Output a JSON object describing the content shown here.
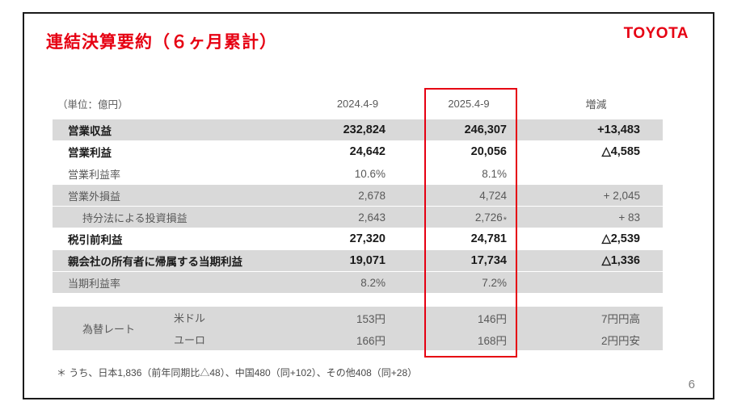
{
  "slide": {
    "title": "連結決算要約（６ヶ月累計）",
    "logo_text": "TOYOTA",
    "page_number": "6",
    "footnote": "＊ うち、日本1,836（前年同期比△48）、中国480（同+102）、その他408（同+28）"
  },
  "colors": {
    "accent_red": "#e60012",
    "row_gray": "#d9d9d9",
    "text_dark": "#1a1a1a",
    "text_gray": "#595959"
  },
  "table": {
    "unit_label": "（単位：億円）",
    "headers": {
      "period_prev": "2024.4-9",
      "period_curr": "2025.4-9",
      "change": "増減"
    },
    "rows": [
      {
        "label": "営業収益",
        "y2024": "232,824",
        "y2025": "246,307",
        "change": "+13,483"
      },
      {
        "label": "営業利益",
        "y2024": "24,642",
        "y2025": "20,056",
        "change": "△4,585"
      },
      {
        "label": "営業利益率",
        "y2024": "10.6%",
        "y2025": "8.1%",
        "change": ""
      },
      {
        "label": "営業外損益",
        "y2024": "2,678",
        "y2025": "4,724",
        "change": "+ 2,045"
      },
      {
        "label": "持分法による投資損益",
        "y2024": "2,643",
        "y2025": "2,726",
        "y2025_suffix": "*",
        "change": "+ 83"
      },
      {
        "label": "税引前利益",
        "y2024": "27,320",
        "y2025": "24,781",
        "change": "△2,539"
      },
      {
        "label": "親会社の所有者に帰属する当期利益",
        "y2024": "19,071",
        "y2025": "17,734",
        "change": "△1,336"
      },
      {
        "label": "当期利益率",
        "y2024": "8.2%",
        "y2025": "7.2%",
        "change": ""
      }
    ]
  },
  "fx": {
    "group_label": "為替レート",
    "rows": [
      {
        "currency": "米ドル",
        "y2024": "153円",
        "y2025": "146円",
        "change": "7円円高"
      },
      {
        "currency": "ユーロ",
        "y2024": "166円",
        "y2025": "168円",
        "change": "2円円安"
      }
    ]
  }
}
